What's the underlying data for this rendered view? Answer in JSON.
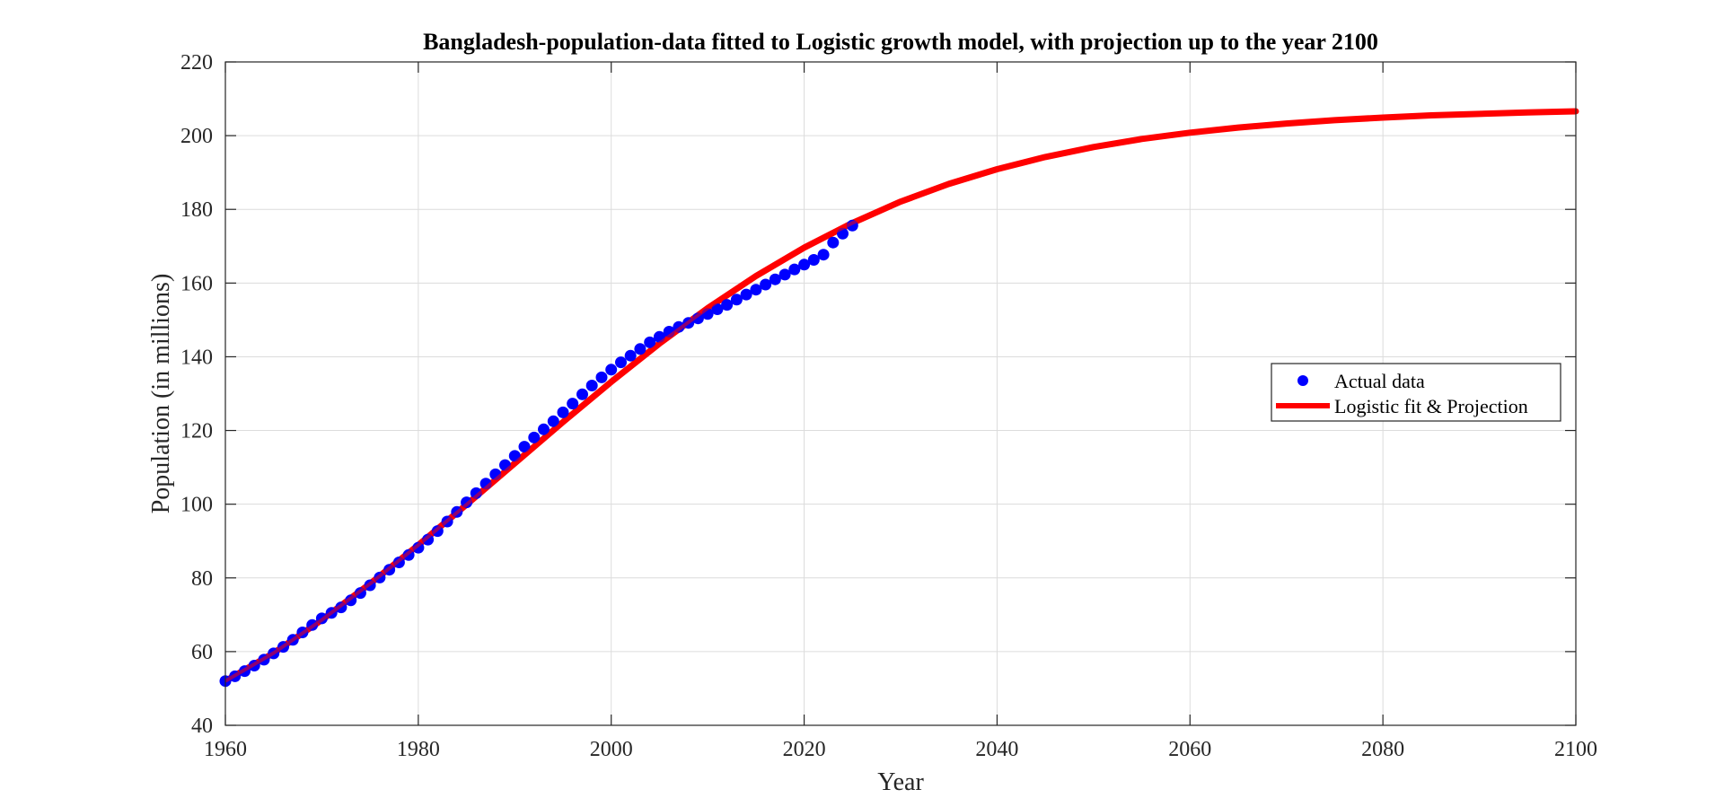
{
  "chart_data": {
    "type": "scatter",
    "title": "Bangladesh-population-data fitted to Logistic growth model, with projection up to the year 2100",
    "xlabel": "Year",
    "ylabel": "Population (in millions)",
    "xlim": [
      1960,
      2100
    ],
    "ylim": [
      40,
      220
    ],
    "xticks": [
      1960,
      1980,
      2000,
      2020,
      2040,
      2060,
      2080,
      2100
    ],
    "yticks": [
      40,
      60,
      80,
      100,
      120,
      140,
      160,
      180,
      200,
      220
    ],
    "grid": true,
    "legend_position": "right",
    "series": [
      {
        "name": "Actual data",
        "kind": "scatter",
        "color": "#0000ff",
        "x": [
          1960,
          1961,
          1962,
          1963,
          1964,
          1965,
          1966,
          1967,
          1968,
          1969,
          1970,
          1971,
          1972,
          1973,
          1974,
          1975,
          1976,
          1977,
          1978,
          1979,
          1980,
          1981,
          1982,
          1983,
          1984,
          1985,
          1986,
          1987,
          1988,
          1989,
          1990,
          1991,
          1992,
          1993,
          1994,
          1995,
          1996,
          1997,
          1998,
          1999,
          2000,
          2001,
          2002,
          2003,
          2004,
          2005,
          2006,
          2007,
          2008,
          2009,
          2010,
          2011,
          2012,
          2013,
          2014,
          2015,
          2016,
          2017,
          2018,
          2019,
          2020,
          2021,
          2022,
          2023,
          2024,
          2025
        ],
        "y": [
          52.0,
          53.3,
          54.7,
          56.2,
          57.8,
          59.5,
          61.3,
          63.2,
          65.2,
          67.2,
          69.0,
          70.5,
          72.0,
          73.9,
          75.9,
          78.0,
          80.1,
          82.2,
          84.2,
          86.2,
          88.2,
          90.4,
          92.7,
          95.3,
          97.9,
          100.5,
          103.0,
          105.6,
          108.1,
          110.6,
          113.1,
          115.6,
          118.1,
          120.3,
          122.5,
          124.9,
          127.3,
          129.8,
          132.2,
          134.4,
          136.5,
          138.5,
          140.3,
          142.1,
          143.9,
          145.4,
          146.8,
          148.1,
          149.2,
          150.4,
          151.6,
          152.9,
          154.1,
          155.5,
          156.9,
          158.2,
          159.6,
          161.0,
          162.3,
          163.7,
          165.0,
          166.3,
          167.7,
          171.0,
          173.4,
          175.6
        ]
      },
      {
        "name": "Logistic fit & Projection",
        "kind": "line",
        "color": "#ff0000",
        "model": "logistic",
        "x": [
          1960,
          1965,
          1970,
          1975,
          1980,
          1985,
          1990,
          1995,
          2000,
          2005,
          2010,
          2015,
          2020,
          2025,
          2030,
          2035,
          2040,
          2045,
          2050,
          2055,
          2060,
          2065,
          2070,
          2075,
          2080,
          2085,
          2090,
          2095,
          2100
        ],
        "y": [
          52.0,
          59.6,
          68.6,
          78.4,
          88.9,
          99.9,
          111.1,
          122.3,
          133.2,
          143.6,
          153.2,
          161.9,
          169.6,
          176.3,
          182.1,
          186.9,
          190.9,
          194.2,
          196.9,
          199.1,
          200.8,
          202.2,
          203.3,
          204.2,
          204.9,
          205.5,
          205.9,
          206.3,
          206.6
        ]
      }
    ]
  }
}
